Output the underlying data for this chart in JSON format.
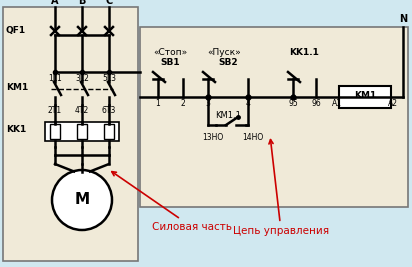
{
  "bg_color": "#f0ead8",
  "bg_color2": "#d0e8f0",
  "border_color": "#777777",
  "line_color": "#000000",
  "red_color": "#cc0000",
  "labels_A": "A",
  "labels_B": "B",
  "labels_C": "C",
  "label_N": "N",
  "label_QF1": "QF1",
  "label_KM1_left": "KM1",
  "label_KK1": "KK1",
  "label_1L1": "1L1",
  "label_3L2": "3L2",
  "label_5L3": "5L3",
  "label_2T1": "2T1",
  "label_4T2": "4T2",
  "label_6T3": "6T3",
  "label_M": "M",
  "label_stop": "«Стоп»",
  "label_start": "«Пуск»",
  "label_SB1": "SB1",
  "label_SB2": "SB2",
  "label_KK11": "KK1.1",
  "label_KM1_right": "KM1",
  "label_KM11": "KM1.1",
  "label_13NO": "13НО",
  "label_14NO": "14НО",
  "label_control": "Цепь управления",
  "label_power": "Силовая часть"
}
